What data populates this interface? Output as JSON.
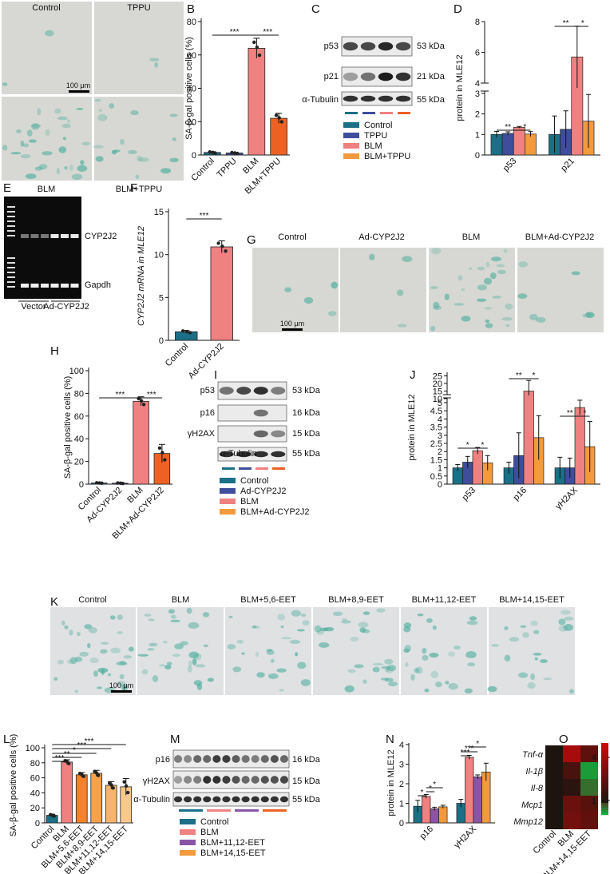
{
  "colors": {
    "control": "#1b6f86",
    "tppu": "#3e4d9c",
    "blm": "#ef8181",
    "blm_tppu": "#f29a3c",
    "blm_orange": "#ee6124",
    "eet56": "#f5812d",
    "eet89": "#f8a148",
    "eet1112": "#f7b46a",
    "eet1415": "#f9c98b",
    "purple": "#8a55a7",
    "micro_bg": "#d7d8d4",
    "stain": "#4fae9c"
  },
  "panel_labels": [
    "A",
    "B",
    "C",
    "D",
    "E",
    "F",
    "G",
    "H",
    "I",
    "J",
    "K",
    "L",
    "M",
    "N",
    "O"
  ],
  "A": {
    "labels": [
      "Control",
      "TPPU",
      "BLM",
      "BLM+TPPU"
    ],
    "scale": "100 μm"
  },
  "B": {
    "ylabel": "SA-β-gal positive cells (%)",
    "categories": [
      "Control",
      "TPPU",
      "BLM",
      "BLM+TPPU"
    ],
    "sig": [
      "***",
      "***"
    ]
  },
  "C": {
    "bands": [
      "p53",
      "p21",
      "α-Tubulin"
    ],
    "kda": [
      "53 kDa",
      "21 kDa",
      "55 kDa"
    ],
    "legend": [
      "Control",
      "TPPU",
      "BLM",
      "BLM+TPPU"
    ]
  },
  "D": {
    "ylabel": "protein in MLE12",
    "groups": [
      "p53",
      "p21"
    ],
    "sig": [
      "**",
      "*",
      "**",
      "*"
    ]
  },
  "E": {
    "band_labels": [
      "CYP2J2",
      "Gapdh"
    ],
    "lane_labels": [
      "Vector",
      "Ad-CYP2J2"
    ]
  },
  "F": {
    "ylabel": "CYP2J2 mRNA in MLE12",
    "categories": [
      "Control",
      "Ad-CYP2J2"
    ],
    "sig": [
      "***"
    ]
  },
  "G": {
    "labels": [
      "Control",
      "Ad-CYP2J2",
      "BLM",
      "BLM+Ad-CYP2J2"
    ],
    "scale": "100 μm"
  },
  "H": {
    "ylabel": "SA-β-gal positive cells (%)",
    "categories": [
      "Control",
      "Ad-CYP2J2",
      "BLM",
      "BLM+Ad-CYP2J2"
    ],
    "sig": [
      "***",
      "***"
    ]
  },
  "I": {
    "bands": [
      "p53",
      "p16",
      "γH2AX",
      "α-Tubulin"
    ],
    "kda": [
      "53 kDa",
      "16 kDa",
      "15 kDa",
      "55 kDa"
    ],
    "legend": [
      "Control",
      "Ad-CYP2J2",
      "BLM",
      "BLM+Ad-CYP2J2"
    ]
  },
  "J": {
    "ylabel": "protein in MLE12",
    "groups": [
      "p53",
      "p16",
      "γH2AX"
    ],
    "sig": [
      "*",
      "*",
      "**",
      "*",
      "**",
      "*"
    ]
  },
  "K": {
    "labels": [
      "Control",
      "BLM",
      "BLM+5,6-EET",
      "BLM+8,9-EET",
      "BLM+11,12-EET",
      "BLM+14,15-EET"
    ],
    "scale": "100 μm"
  },
  "L": {
    "ylabel": "SA-β-gal positive cells (%)",
    "categories": [
      "Control",
      "BLM",
      "BLM+5,6-EET",
      "BLM+8,9-EET",
      "BLM+11,12-EET",
      "BLM+14,15-EET"
    ],
    "sig": [
      "***",
      "**",
      "*",
      "***",
      "***"
    ]
  },
  "M": {
    "bands": [
      "p16",
      "γH2AX",
      "α-Tubulin"
    ],
    "kda": [
      "16 kDa",
      "15 kDa",
      "55 kDa"
    ],
    "legend": [
      "Control",
      "BLM",
      "BLM+11,12-EET",
      "BLM+14,15-EET"
    ]
  },
  "N": {
    "ylabel": "protein in MLE12",
    "groups": [
      "p16",
      "γH2AX"
    ],
    "sig": [
      "*",
      "*",
      "*",
      "***",
      "***",
      "*"
    ]
  },
  "O": {
    "rows": [
      "Tnf-α",
      "Il-1β",
      "Il-8",
      "Mcp1",
      "Mmp12"
    ],
    "cols": [
      "Control",
      "BLM",
      "BLM+14,15-EET"
    ],
    "scale_ticks": [
      "4",
      "1"
    ]
  },
  "chart_data": [
    {
      "panel": "B",
      "type": "bar",
      "categories": [
        "Control",
        "TPPU",
        "BLM",
        "BLM+TPPU"
      ],
      "values": [
        1.5,
        1.2,
        64,
        22
      ],
      "errors": [
        0.5,
        0.4,
        6,
        3
      ],
      "ylabel": "SA-β-gal positive cells (%)",
      "ylim": [
        0,
        80
      ],
      "yticks": [
        0,
        20,
        40,
        60,
        80
      ]
    },
    {
      "panel": "D",
      "type": "bar",
      "categories": [
        "p53",
        "p21"
      ],
      "series": [
        {
          "name": "Control",
          "values": [
            1.0,
            1.0
          ],
          "errors": [
            0.15,
            0.9
          ]
        },
        {
          "name": "TPPU",
          "values": [
            1.05,
            1.25
          ],
          "errors": [
            0.08,
            0.9
          ]
        },
        {
          "name": "BLM",
          "values": [
            1.35,
            5.7
          ],
          "errors": [
            0.04,
            2.0
          ]
        },
        {
          "name": "BLM+TPPU",
          "values": [
            1.02,
            1.65
          ],
          "errors": [
            0.12,
            1.3
          ]
        }
      ],
      "ylabel": "protein in MLE12",
      "yticks": [
        0,
        1,
        2,
        3,
        4,
        6,
        8
      ],
      "axis_break": [
        3.1,
        4
      ]
    },
    {
      "panel": "F",
      "type": "bar",
      "categories": [
        "Control",
        "Ad-CYP2J2"
      ],
      "values": [
        1.0,
        10.9
      ],
      "errors": [
        0.15,
        0.7
      ],
      "ylabel": "CYP2J2 mRNA in MLE12",
      "ylim": [
        0,
        15
      ],
      "yticks": [
        0,
        5,
        10,
        15
      ]
    },
    {
      "panel": "H",
      "type": "bar",
      "categories": [
        "Control",
        "Ad-CYP2J2",
        "BLM",
        "BLM+Ad-CYP2J2"
      ],
      "values": [
        1.0,
        0.8,
        73,
        27
      ],
      "errors": [
        0.3,
        0.3,
        4,
        8
      ],
      "ylabel": "SA-β-gal positive cells (%)",
      "ylim": [
        0,
        100
      ],
      "yticks": [
        0,
        20,
        40,
        60,
        80,
        100
      ]
    },
    {
      "panel": "J",
      "type": "bar",
      "categories": [
        "p53",
        "p16",
        "γH2AX"
      ],
      "series": [
        {
          "name": "Control",
          "values": [
            1.0,
            1.0,
            1.0
          ],
          "errors": [
            0.2,
            0.35,
            0.65
          ]
        },
        {
          "name": "Ad-CYP2J2",
          "values": [
            1.35,
            1.75,
            1.0
          ],
          "errors": [
            0.35,
            1.4,
            0.6
          ]
        },
        {
          "name": "BLM",
          "values": [
            2.05,
            15.0,
            4.7
          ],
          "errors": [
            0.2,
            7.0,
            0.45
          ]
        },
        {
          "name": "BLM+Ad-CYP2J2",
          "values": [
            1.3,
            2.85,
            2.3
          ],
          "errors": [
            0.45,
            1.35,
            1.55
          ]
        }
      ],
      "ylabel": "protein in MLE12",
      "yticks": [
        0,
        0.5,
        1,
        1.5,
        2,
        2.5,
        3,
        3.5,
        4,
        4.5,
        5,
        10,
        15,
        20,
        25
      ],
      "axis_break": [
        5.3,
        10
      ]
    },
    {
      "panel": "L",
      "type": "bar",
      "categories": [
        "Control",
        "BLM",
        "BLM+5,6-EET",
        "BLM+8,9-EET",
        "BLM+11,12-EET",
        "BLM+14,15-EET"
      ],
      "values": [
        10,
        81,
        64,
        66,
        50,
        48
      ],
      "errors": [
        1.5,
        3,
        3,
        4,
        5,
        11
      ],
      "ylabel": "SA-β-gal positive cells (%)",
      "ylim": [
        0,
        100
      ],
      "yticks": [
        0,
        20,
        40,
        60,
        80,
        100
      ]
    },
    {
      "panel": "N",
      "type": "bar",
      "categories": [
        "p16",
        "γH2AX"
      ],
      "series": [
        {
          "name": "Control",
          "values": [
            0.85,
            1.0
          ]
        },
        {
          "name": "BLM",
          "values": [
            1.35,
            3.35
          ]
        },
        {
          "name": "BLM+11,12-EET",
          "values": [
            0.72,
            2.35
          ]
        },
        {
          "name": "BLM+14,15-EET",
          "values": [
            0.82,
            2.6
          ]
        }
      ],
      "errors": [
        [
          0.3,
          0.2
        ],
        [
          0.1,
          0.1
        ],
        [
          0.08,
          0.1
        ],
        [
          0.08,
          0.45
        ]
      ],
      "ylabel": "protein in MLE12",
      "ylim": [
        0,
        4
      ],
      "yticks": [
        0,
        1,
        2,
        3,
        4
      ]
    },
    {
      "panel": "O",
      "type": "heatmap",
      "rows": [
        "Tnf-α",
        "Il-1β",
        "Il-8",
        "Mcp1",
        "Mmp12"
      ],
      "cols": [
        "Control",
        "BLM",
        "BLM+14,15-EET"
      ],
      "values": [
        [
          1,
          4.2,
          2.5
        ],
        [
          1,
          2.0,
          0.3
        ],
        [
          1,
          1.3,
          0.6
        ],
        [
          1,
          2.8,
          2.4
        ],
        [
          1,
          3.0,
          2.6
        ]
      ],
      "scale": [
        0,
        5
      ]
    }
  ]
}
